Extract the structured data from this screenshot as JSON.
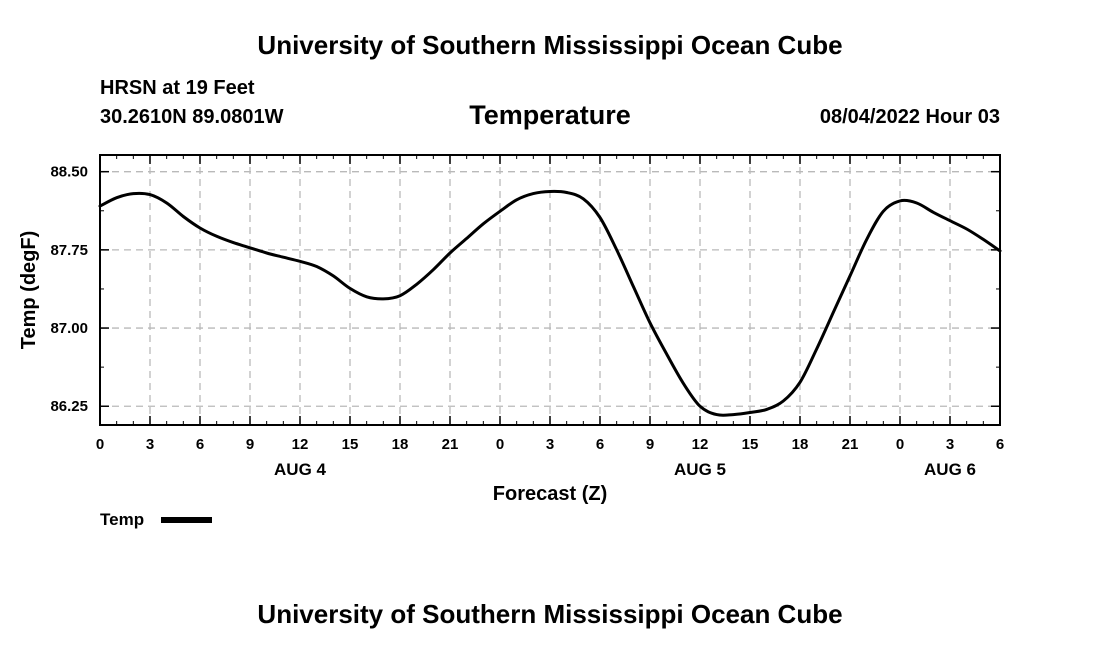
{
  "header": {
    "title": "University of Southern Mississippi Ocean Cube",
    "station": "HRSN at 19 Feet",
    "coords": "30.2610N  89.0801W",
    "variable": "Temperature",
    "datetime": "08/04/2022 Hour 03"
  },
  "footer": {
    "title": "University of Southern Mississippi Ocean Cube"
  },
  "chart_data": {
    "type": "line",
    "title": "Temperature",
    "xlabel": "Forecast (Z)",
    "ylabel": "Temp (degF)",
    "xlim": [
      0,
      54
    ],
    "ylim": [
      86.07,
      88.66
    ],
    "yticks": [
      86.25,
      87.0,
      87.75,
      88.5
    ],
    "ytick_labels": [
      "86.25",
      "87.00",
      "87.75",
      "88.50"
    ],
    "xticks": [
      0,
      3,
      6,
      9,
      12,
      15,
      18,
      21,
      24,
      27,
      30,
      33,
      36,
      39,
      42,
      45,
      48,
      51,
      54
    ],
    "xtick_labels": [
      "0",
      "3",
      "6",
      "9",
      "12",
      "15",
      "18",
      "21",
      "0",
      "3",
      "6",
      "9",
      "12",
      "15",
      "18",
      "21",
      "0",
      "3",
      "6"
    ],
    "day_labels": [
      {
        "x": 12,
        "label": "AUG 4"
      },
      {
        "x": 36,
        "label": "AUG 5"
      },
      {
        "x": 51,
        "label": "AUG 6"
      }
    ],
    "grid": true,
    "legend": "bottom-left",
    "series": [
      {
        "name": "Temp",
        "color": "#000000",
        "x": [
          0,
          1,
          2,
          3,
          4,
          5,
          6,
          7,
          8,
          9,
          10,
          11,
          12,
          13,
          14,
          15,
          16,
          17,
          18,
          19,
          20,
          21,
          22,
          23,
          24,
          25,
          26,
          27,
          28,
          29,
          30,
          31,
          32,
          33,
          34,
          35,
          36,
          37,
          38,
          39,
          40,
          41,
          42,
          43,
          44,
          45,
          46,
          47,
          48,
          49,
          50,
          51,
          52,
          53,
          54
        ],
        "values": [
          88.17,
          88.25,
          88.29,
          88.28,
          88.2,
          88.07,
          87.96,
          87.88,
          87.82,
          87.77,
          87.72,
          87.68,
          87.64,
          87.59,
          87.5,
          87.38,
          87.3,
          87.28,
          87.31,
          87.42,
          87.56,
          87.72,
          87.86,
          88.0,
          88.12,
          88.23,
          88.29,
          88.31,
          88.3,
          88.24,
          88.06,
          87.75,
          87.4,
          87.05,
          86.75,
          86.47,
          86.25,
          86.17,
          86.17,
          86.19,
          86.22,
          86.3,
          86.48,
          86.8,
          87.15,
          87.5,
          87.85,
          88.12,
          88.22,
          88.2,
          88.11,
          88.03,
          87.95,
          87.85,
          87.74
        ]
      }
    ]
  }
}
